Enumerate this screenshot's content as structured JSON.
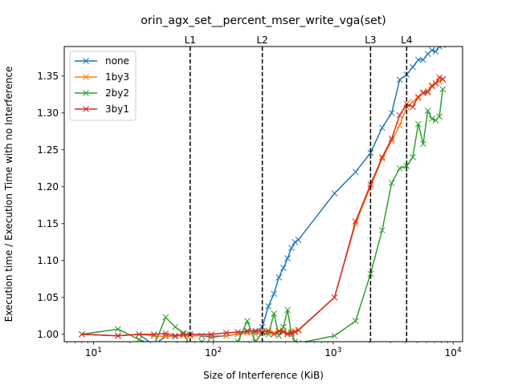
{
  "chart_data": {
    "type": "line",
    "title": "orin_agx_set__percent_mser_write_vga(set)",
    "xlabel": "Size of Interference (KiB)",
    "ylabel": "Execution time / Execution Time with no Interference",
    "xscale": "log",
    "xlim": [
      5.7,
      12000
    ],
    "ylim": [
      0.99,
      1.39
    ],
    "x_ticks": [
      {
        "value": 10,
        "base": "10",
        "exp": "1"
      },
      {
        "value": 100,
        "base": "10",
        "exp": "2"
      },
      {
        "value": 1000,
        "base": "10",
        "exp": "3"
      },
      {
        "value": 10000,
        "base": "10",
        "exp": "4"
      }
    ],
    "y_ticks": [
      "1.00",
      "1.05",
      "1.10",
      "1.15",
      "1.20",
      "1.25",
      "1.30",
      "1.35"
    ],
    "grid": false,
    "legend_position": "top-left",
    "marker": "x",
    "cache_levels": [
      {
        "label": "L1",
        "x": 64
      },
      {
        "label": "L2",
        "x": 256
      },
      {
        "label": "L3",
        "x": 2048
      },
      {
        "label": "L4",
        "x": 4096
      }
    ],
    "series": [
      {
        "name": "none",
        "color": "#1f77b4",
        "points": [
          [
            8,
            1.0
          ],
          [
            16,
            0.998
          ],
          [
            24,
            1.0
          ],
          [
            32,
            0.985
          ],
          [
            40,
            0.998
          ],
          [
            48,
            0.997
          ],
          [
            56,
            1.0
          ],
          [
            64,
            0.998
          ],
          [
            80,
            0.998
          ],
          [
            96,
            0.996
          ],
          [
            128,
            0.998
          ],
          [
            160,
            1.0
          ],
          [
            192,
            1.005
          ],
          [
            224,
            1.003
          ],
          [
            256,
            1.01
          ],
          [
            288,
            1.038
          ],
          [
            320,
            1.055
          ],
          [
            352,
            1.077
          ],
          [
            384,
            1.09
          ],
          [
            416,
            1.103
          ],
          [
            448,
            1.117
          ],
          [
            480,
            1.125
          ],
          [
            512,
            1.128
          ],
          [
            1024,
            1.191
          ],
          [
            1536,
            1.22
          ],
          [
            2048,
            1.246
          ],
          [
            2560,
            1.28
          ],
          [
            3072,
            1.3
          ],
          [
            3584,
            1.345
          ],
          [
            4096,
            1.352
          ],
          [
            4608,
            1.362
          ],
          [
            5120,
            1.372
          ],
          [
            5632,
            1.372
          ],
          [
            6144,
            1.38
          ],
          [
            6656,
            1.385
          ],
          [
            7168,
            1.383
          ],
          [
            7680,
            1.39
          ],
          [
            8192,
            1.392
          ]
        ]
      },
      {
        "name": "1by3",
        "color": "#ff7f0e",
        "points": [
          [
            8,
            1.0
          ],
          [
            16,
            0.998
          ],
          [
            24,
            1.0
          ],
          [
            32,
            0.998
          ],
          [
            40,
            0.997
          ],
          [
            48,
            0.998
          ],
          [
            56,
            0.998
          ],
          [
            64,
            0.998
          ],
          [
            96,
            0.998
          ],
          [
            128,
            0.998
          ],
          [
            160,
            1.0
          ],
          [
            192,
            1.002
          ],
          [
            224,
            1.0
          ],
          [
            256,
            1.004
          ],
          [
            288,
            1.003
          ],
          [
            320,
            1.002
          ],
          [
            352,
            1.005
          ],
          [
            384,
            1.005
          ],
          [
            416,
            1.002
          ],
          [
            448,
            1.003
          ],
          [
            480,
            1.004
          ],
          [
            512,
            1.005
          ],
          [
            1024,
            1.05
          ],
          [
            1536,
            1.15
          ],
          [
            2048,
            1.2
          ],
          [
            2560,
            1.238
          ],
          [
            3072,
            1.262
          ],
          [
            3584,
            1.283
          ],
          [
            4096,
            1.308
          ],
          [
            4608,
            1.315
          ],
          [
            5120,
            1.32
          ],
          [
            5632,
            1.328
          ],
          [
            6144,
            1.33
          ],
          [
            6656,
            1.338
          ],
          [
            7168,
            1.34
          ],
          [
            7680,
            1.343
          ],
          [
            8192,
            1.345
          ]
        ]
      },
      {
        "name": "2by2",
        "color": "#2ca02c",
        "points": [
          [
            8,
            1.0
          ],
          [
            16,
            1.007
          ],
          [
            24,
            0.993
          ],
          [
            32,
            0.985
          ],
          [
            40,
            1.023
          ],
          [
            48,
            1.01
          ],
          [
            56,
            1.002
          ],
          [
            64,
            0.985
          ],
          [
            80,
            0.99
          ],
          [
            96,
            0.988
          ],
          [
            128,
            0.985
          ],
          [
            160,
            0.99
          ],
          [
            192,
            1.018
          ],
          [
            224,
            0.99
          ],
          [
            256,
            1.002
          ],
          [
            288,
            1.0
          ],
          [
            320,
            1.028
          ],
          [
            352,
            0.998
          ],
          [
            384,
            1.01
          ],
          [
            416,
            1.033
          ],
          [
            448,
            1.0
          ],
          [
            480,
            0.99
          ],
          [
            512,
            0.988
          ],
          [
            1024,
            0.998
          ],
          [
            1536,
            1.018
          ],
          [
            2048,
            1.082
          ],
          [
            2560,
            1.141
          ],
          [
            3072,
            1.205
          ],
          [
            3584,
            1.225
          ],
          [
            4096,
            1.228
          ],
          [
            4608,
            1.24
          ],
          [
            5120,
            1.285
          ],
          [
            5632,
            1.258
          ],
          [
            6144,
            1.303
          ],
          [
            6656,
            1.292
          ],
          [
            7168,
            1.29
          ],
          [
            7680,
            1.295
          ],
          [
            8192,
            1.332
          ]
        ]
      },
      {
        "name": "3by1",
        "color": "#d62728",
        "points": [
          [
            8,
            1.0
          ],
          [
            16,
            0.998
          ],
          [
            24,
            1.0
          ],
          [
            32,
            1.0
          ],
          [
            40,
            1.001
          ],
          [
            48,
            0.998
          ],
          [
            56,
            1.0
          ],
          [
            64,
            1.0
          ],
          [
            96,
            1.0
          ],
          [
            128,
            1.002
          ],
          [
            160,
            1.003
          ],
          [
            192,
            1.004
          ],
          [
            224,
            1.005
          ],
          [
            256,
            1.003
          ],
          [
            288,
            1.005
          ],
          [
            320,
            1.0
          ],
          [
            352,
            1.004
          ],
          [
            384,
            1.003
          ],
          [
            416,
            1.0
          ],
          [
            448,
            1.002
          ],
          [
            480,
            1.003
          ],
          [
            512,
            1.006
          ],
          [
            1024,
            1.05
          ],
          [
            1536,
            1.153
          ],
          [
            2048,
            1.203
          ],
          [
            2560,
            1.24
          ],
          [
            3072,
            1.265
          ],
          [
            3584,
            1.297
          ],
          [
            4096,
            1.312
          ],
          [
            4608,
            1.308
          ],
          [
            5120,
            1.322
          ],
          [
            5632,
            1.327
          ],
          [
            6144,
            1.328
          ],
          [
            6656,
            1.336
          ],
          [
            7168,
            1.34
          ],
          [
            7680,
            1.348
          ],
          [
            8192,
            1.346
          ]
        ]
      }
    ]
  }
}
